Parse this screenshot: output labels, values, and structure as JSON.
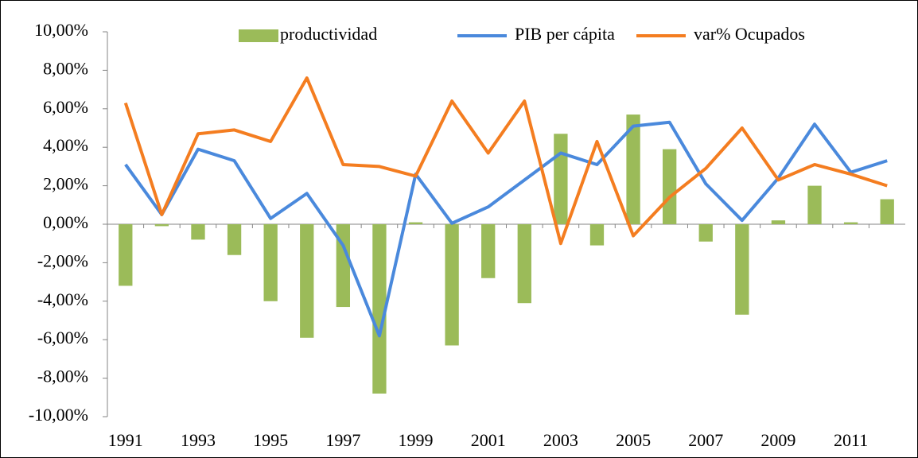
{
  "chart_data": {
    "type": "bar",
    "categories": [
      "1991",
      null,
      "1993",
      null,
      "1995",
      null,
      "1997",
      null,
      "1999",
      null,
      "2001",
      null,
      "2003",
      null,
      "2005",
      null,
      "2007",
      null,
      "2009",
      null,
      "2011",
      null
    ],
    "series": [
      {
        "name": "productividad",
        "type": "bar",
        "color": "#9bbb59",
        "values": [
          -3.2,
          -0.1,
          -0.8,
          -1.6,
          -4.0,
          -5.9,
          -4.3,
          -8.8,
          0.1,
          -6.3,
          -2.8,
          -4.1,
          4.7,
          -1.1,
          5.7,
          3.9,
          -0.9,
          -4.7,
          0.2,
          2.0,
          0.1,
          1.3
        ]
      },
      {
        "name": "PIB per cápita",
        "type": "line",
        "color": "#4a89dc",
        "values": [
          3.1,
          0.5,
          3.9,
          3.3,
          0.3,
          1.6,
          -1.1,
          -5.8,
          2.6,
          0.05,
          0.9,
          2.3,
          3.7,
          3.1,
          5.1,
          5.3,
          2.1,
          0.2,
          2.4,
          5.2,
          2.7,
          3.3
        ]
      },
      {
        "name": "var% Ocupados",
        "type": "line",
        "color": "#f47d20",
        "values": [
          6.3,
          0.5,
          4.7,
          4.9,
          4.3,
          7.6,
          3.1,
          3.0,
          2.5,
          6.4,
          3.7,
          6.4,
          -1.0,
          4.3,
          -0.6,
          1.4,
          2.9,
          5.0,
          2.3,
          3.1,
          2.6,
          2.0
        ]
      }
    ],
    "ylim": [
      -10,
      10
    ],
    "yticks": [
      {
        "value": -10,
        "label": "-10,00%"
      },
      {
        "value": -8,
        "label": "-8,00%"
      },
      {
        "value": -6,
        "label": "-6,00%"
      },
      {
        "value": -4,
        "label": "-4,00%"
      },
      {
        "value": -2,
        "label": "-2,00%"
      },
      {
        "value": 0,
        "label": "0,00%"
      },
      {
        "value": 2,
        "label": "2,00%"
      },
      {
        "value": 4,
        "label": "4,00%"
      },
      {
        "value": 6,
        "label": "6,00%"
      },
      {
        "value": 8,
        "label": "8,00%"
      },
      {
        "value": 10,
        "label": "10,00%"
      }
    ],
    "legend": "top"
  }
}
